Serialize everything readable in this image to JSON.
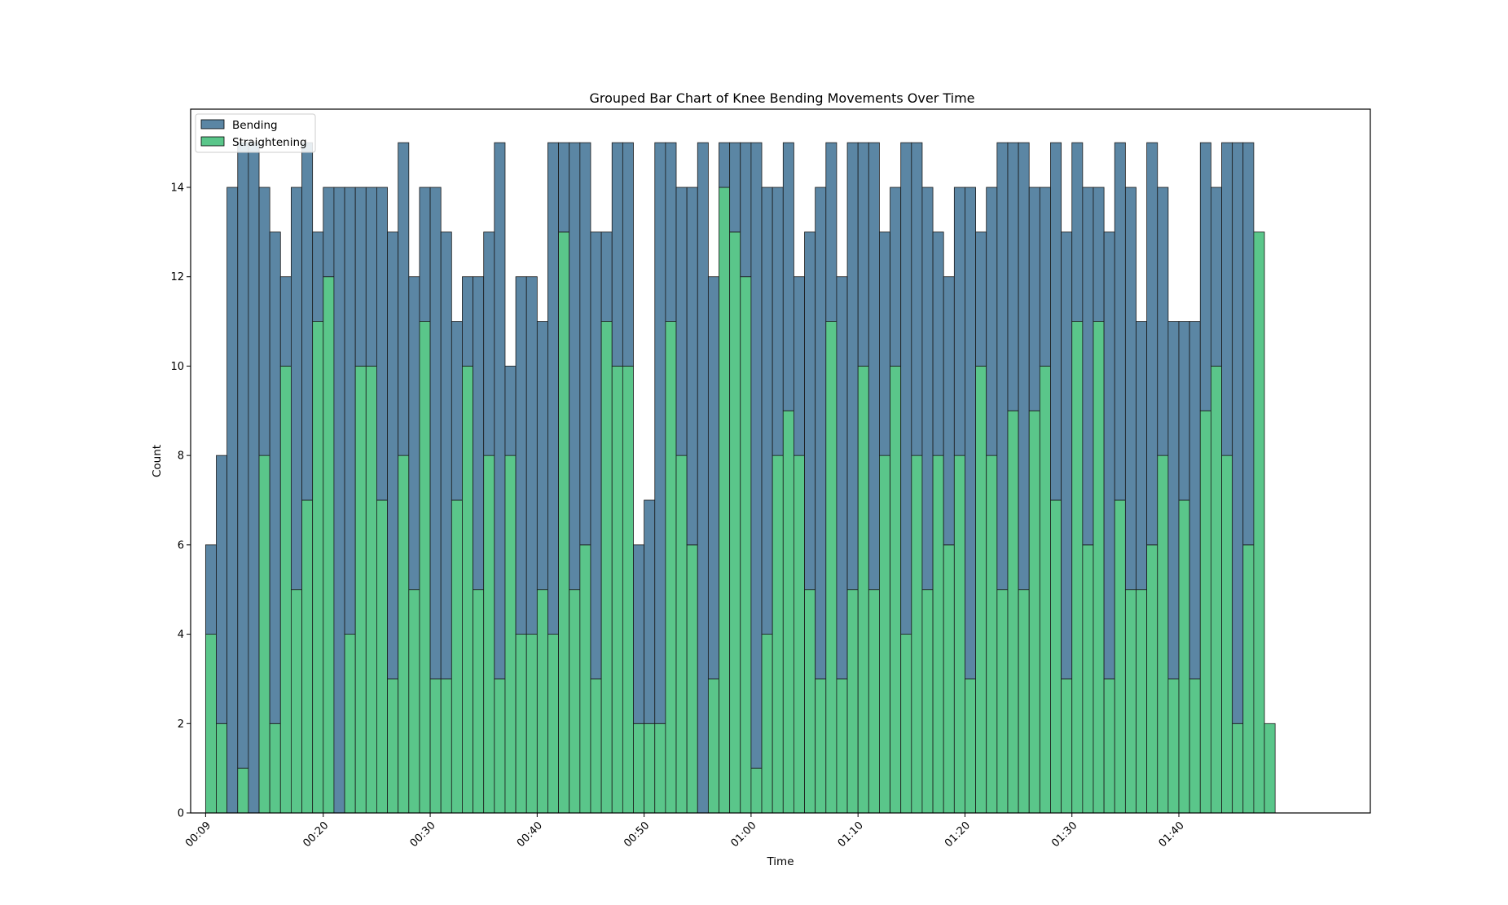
{
  "chart_data": {
    "type": "bar",
    "stacked": true,
    "title": "Grouped Bar Chart of Knee Bending Movements Over Time",
    "xlabel": "Time",
    "ylabel": "Count",
    "ylim": [
      0,
      15.75
    ],
    "yticks": [
      0,
      2,
      4,
      6,
      8,
      10,
      12,
      14
    ],
    "x_start_seconds": 9,
    "bin_seconds": 1,
    "xlim_seconds": [
      7.6,
      117.9
    ],
    "xticks": [
      "00:09",
      "00:20",
      "00:30",
      "00:40",
      "00:50",
      "01:00",
      "01:10",
      "01:20",
      "01:30",
      "01:40"
    ],
    "xtick_seconds": [
      9,
      20,
      30,
      40,
      50,
      60,
      70,
      80,
      90,
      100
    ],
    "legend_position": "upper-left",
    "series": [
      {
        "name": "Straightening",
        "color": "#5ac68a",
        "values": [
          4,
          2,
          0,
          1,
          0,
          8,
          2,
          10,
          5,
          7,
          11,
          12,
          0,
          4,
          10,
          10,
          7,
          3,
          8,
          5,
          11,
          3,
          3,
          7,
          10,
          5,
          8,
          3,
          8,
          4,
          4,
          5,
          4,
          13,
          5,
          6,
          3,
          11,
          10,
          10,
          2,
          2,
          2,
          11,
          8,
          6,
          0,
          3,
          14,
          13,
          12,
          1,
          4,
          8,
          9,
          8,
          5,
          3,
          11,
          3,
          5,
          10,
          5,
          8,
          10,
          4,
          8,
          5,
          8,
          6,
          8,
          3,
          10,
          8,
          5,
          9,
          5,
          9,
          10,
          7,
          3,
          11,
          6,
          11,
          3,
          7,
          5,
          5,
          6,
          8,
          3,
          7,
          3,
          9,
          10,
          8,
          2,
          6,
          13,
          2
        ]
      },
      {
        "name": "Bending",
        "color": "#5b86a4",
        "values": [
          2,
          6,
          14,
          14,
          15,
          6,
          11,
          2,
          9,
          8,
          2,
          2,
          14,
          10,
          4,
          4,
          7,
          10,
          7,
          7,
          3,
          11,
          10,
          4,
          2,
          7,
          5,
          12,
          2,
          8,
          8,
          6,
          11,
          2,
          10,
          9,
          10,
          2,
          5,
          5,
          4,
          5,
          13,
          4,
          6,
          8,
          15,
          9,
          1,
          2,
          3,
          14,
          10,
          6,
          6,
          4,
          8,
          11,
          4,
          9,
          10,
          5,
          10,
          5,
          4,
          11,
          7,
          9,
          5,
          6,
          6,
          11,
          3,
          6,
          10,
          6,
          10,
          5,
          4,
          8,
          10,
          4,
          8,
          3,
          10,
          8,
          9,
          6,
          9,
          6,
          8,
          4,
          8,
          6,
          4,
          7,
          13,
          9,
          0,
          0
        ]
      }
    ]
  }
}
